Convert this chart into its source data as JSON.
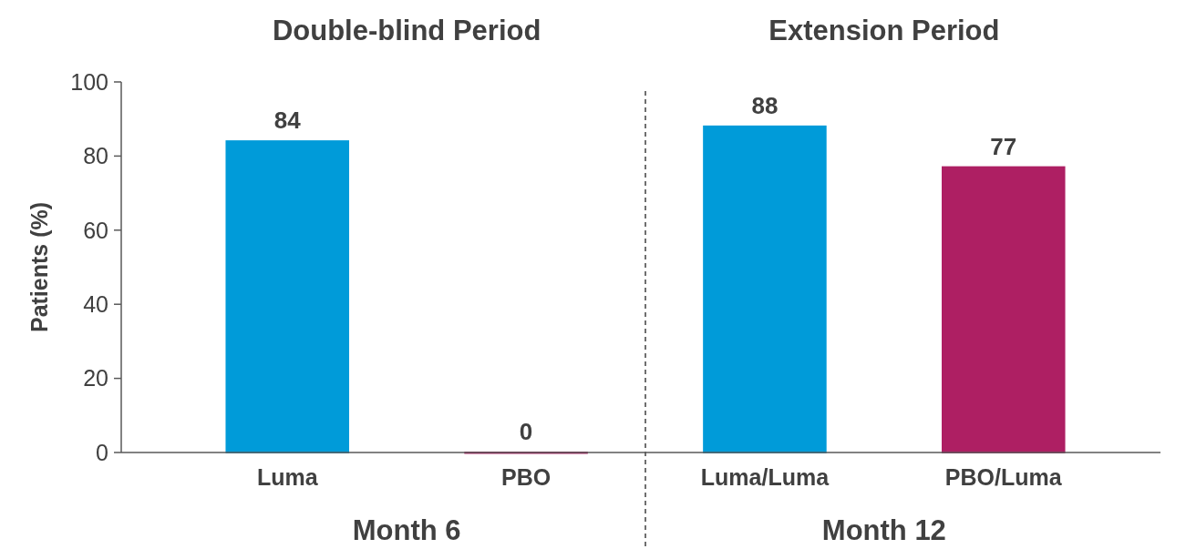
{
  "chart_data": {
    "type": "bar",
    "ylabel": "Patients (%)",
    "categories": [
      "Luma",
      "PBO",
      "Luma/Luma",
      "PBO/Luma"
    ],
    "values": [
      84,
      0,
      88,
      77
    ],
    "colors": [
      "#009bd9",
      "#ae1f63",
      "#009bd9",
      "#ae1f63"
    ],
    "ylim": [
      0,
      100
    ],
    "yticks": [
      0,
      20,
      40,
      60,
      80,
      100
    ],
    "data_labels": true,
    "grid": false,
    "annotations": [
      "Double-blind Period",
      "Extension Period",
      "Month 6",
      "Month 12"
    ]
  }
}
